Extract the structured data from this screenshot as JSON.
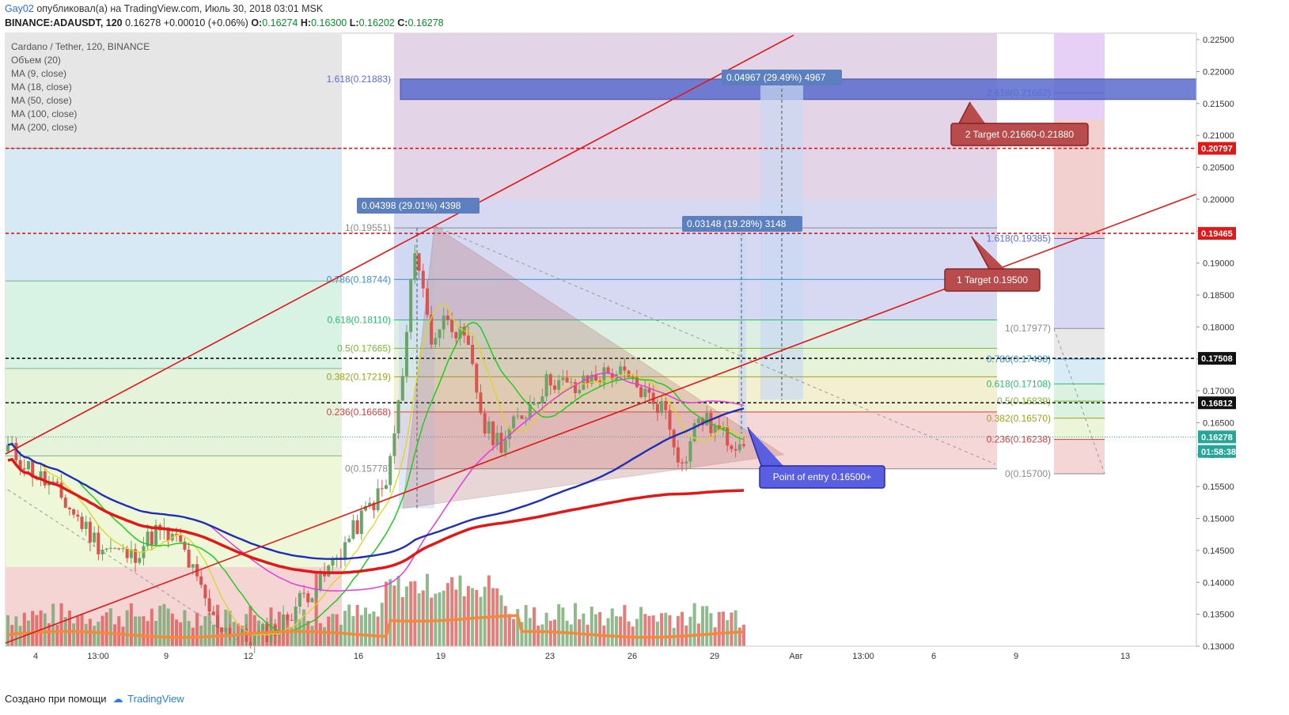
{
  "header": {
    "user": "Gay02",
    "published": " опубликовал(а) на TradingView.com, Июль 30, 2018 03:01 MSK",
    "symbol": "BINANCE:ADAUSDT, 120",
    "last": "0.16278",
    "change": "+0.00010 (+0.06%)",
    "o_label": "O:",
    "o": "0.16274",
    "h_label": "H:",
    "h": "0.16300",
    "l_label": "L:",
    "l": "0.16202",
    "c_label": "C:",
    "c": "0.16278"
  },
  "legend": [
    "Cardano / Tether, 120, BINANCE",
    "Объем (20)",
    "MA (9, close)",
    "MA (18, close)",
    "MA (50, close)",
    "MA (100, close)",
    "MA (200, close)"
  ],
  "footer": {
    "made_with": "Создано при помощи",
    "brand": "TradingView"
  },
  "colors": {
    "up": "#6ba368",
    "down": "#d9534f",
    "ma9": "#d8d820",
    "ma18": "#1fcc1f",
    "ma50": "#e43be4",
    "ma100": "#1f2fb5",
    "ma200": "#e01818",
    "volume_ma": "#f3893c",
    "trend": "#e01818",
    "fib_text": "#5a6bd8"
  },
  "chart_data": {
    "type": "candlestick",
    "symbol": "ADAUSDT",
    "exchange": "BINANCE",
    "timeframe": "120",
    "ylim": [
      0.13,
      0.226
    ],
    "y_ticks": [
      "0.22500",
      "0.22000",
      "0.21500",
      "0.21000",
      "0.20500",
      "0.20000",
      "0.19500",
      "0.19000",
      "0.18500",
      "0.18000",
      "0.17500",
      "0.17000",
      "0.16500",
      "0.16000",
      "0.15500",
      "0.15000",
      "0.14500",
      "0.14000",
      "0.13500",
      "0.13000"
    ],
    "x_ticks": [
      "4",
      "13:00",
      "9",
      "12",
      "16",
      "19",
      "23",
      "26",
      "29",
      "Авг",
      "13:00",
      "6",
      "9",
      "13"
    ],
    "price_labels": [
      {
        "text": "0.20797",
        "value": 0.20797,
        "color": "#e01818"
      },
      {
        "text": "0.19465",
        "value": 0.19465,
        "color": "#e01818"
      },
      {
        "text": "0.17508",
        "value": 0.17508,
        "color": "#111111"
      },
      {
        "text": "0.16812",
        "value": 0.16812,
        "color": "#111111"
      },
      {
        "text": "0.16278",
        "value": 0.16278,
        "color": "#26a69a"
      },
      {
        "text": "01:58:38",
        "value": 0.1605,
        "color": "#26a69a"
      }
    ],
    "horizontal_lines": [
      {
        "value": 0.20797,
        "color": "#e01818",
        "style": "dashed"
      },
      {
        "value": 0.19465,
        "color": "#e01818",
        "style": "dashed"
      },
      {
        "value": 0.17508,
        "color": "#111111",
        "style": "dashed"
      },
      {
        "value": 0.16812,
        "color": "#111111",
        "style": "dashed"
      }
    ],
    "fib_retracement": [
      {
        "text": "1(0.19551)",
        "value": 0.19551
      },
      {
        "text": "0.786(0.18744)",
        "value": 0.18744
      },
      {
        "text": "0.618(0.18110)",
        "value": 0.1811
      },
      {
        "text": "0.5(0.17665)",
        "value": 0.17665
      },
      {
        "text": "0.382(0.17219)",
        "value": 0.17219
      },
      {
        "text": "0.236(0.16668)",
        "value": 0.16668
      },
      {
        "text": "0(0.15778)",
        "value": 0.15778
      },
      {
        "text": "1.618(0.21883)",
        "value": 0.21883
      }
    ],
    "fib_extension": [
      {
        "text": "2.618(0.21662)",
        "value": 0.21662
      },
      {
        "text": "1.618(0.19385)",
        "value": 0.19385
      },
      {
        "text": "1(0.17977)",
        "value": 0.17977
      },
      {
        "text": "0.786(0.17498)",
        "value": 0.17498
      },
      {
        "text": "0.618(0.17108)",
        "value": 0.17108
      },
      {
        "text": "0.5(0.16839)",
        "value": 0.16839
      },
      {
        "text": "0.382(0.16570)",
        "value": 0.1657
      },
      {
        "text": "0.236(0.16238)",
        "value": 0.16238
      },
      {
        "text": "0(0.15700)",
        "value": 0.157
      }
    ],
    "measures": [
      {
        "text": "0.04398 (29.01%) 4398"
      },
      {
        "text": "0.03148 (19.28%) 3148"
      },
      {
        "text": "0.04967 (29.49%) 4967"
      }
    ],
    "callouts": [
      {
        "text": "2 Target 0.21660-0.21880"
      },
      {
        "text": "1 Target 0.19500"
      },
      {
        "text": "Point of entry 0.16500+"
      }
    ],
    "candles": {
      "count": 180,
      "start": 0.1605,
      "path": [
        [
          0,
          0.161
        ],
        [
          12,
          0.154
        ],
        [
          22,
          0.146
        ],
        [
          30,
          0.144
        ],
        [
          36,
          0.148
        ],
        [
          42,
          0.146
        ],
        [
          50,
          0.134
        ],
        [
          58,
          0.131
        ],
        [
          66,
          0.133
        ],
        [
          72,
          0.138
        ],
        [
          76,
          0.14
        ],
        [
          82,
          0.146
        ],
        [
          88,
          0.152
        ],
        [
          92,
          0.155
        ],
        [
          96,
          0.172
        ],
        [
          99,
          0.193
        ],
        [
          103,
          0.178
        ],
        [
          107,
          0.182
        ],
        [
          112,
          0.176
        ],
        [
          116,
          0.164
        ],
        [
          120,
          0.162
        ],
        [
          126,
          0.167
        ],
        [
          132,
          0.172
        ],
        [
          138,
          0.17
        ],
        [
          142,
          0.172
        ],
        [
          148,
          0.173
        ],
        [
          154,
          0.17
        ],
        [
          160,
          0.167
        ],
        [
          164,
          0.158
        ],
        [
          168,
          0.166
        ],
        [
          172,
          0.164
        ],
        [
          176,
          0.162
        ],
        [
          179,
          0.1628
        ]
      ]
    },
    "volume": {
      "count": 180,
      "range": [
        0.0,
        1.0
      ]
    }
  }
}
